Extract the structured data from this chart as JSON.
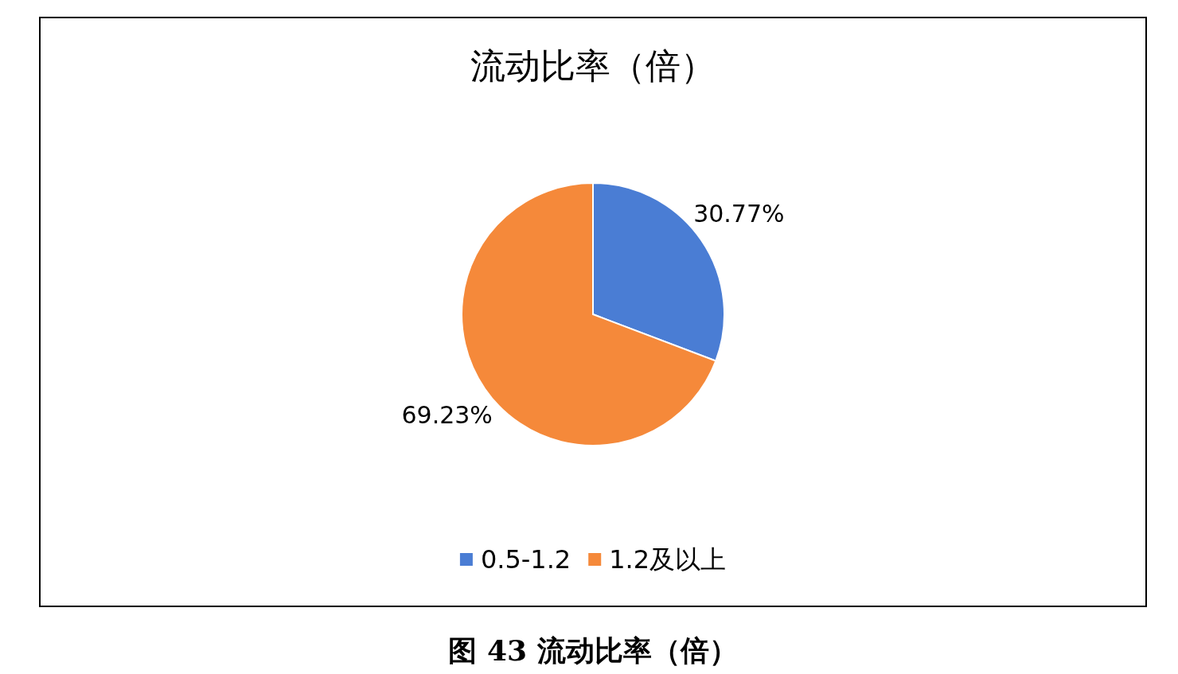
{
  "chart_data": {
    "type": "pie",
    "title": "流动比率（倍）",
    "categories": [
      "0.5-1.2",
      "1.2及以上"
    ],
    "values": [
      30.77,
      69.23
    ],
    "colors": [
      "#4a7dd4",
      "#f5893a"
    ],
    "value_labels": [
      "30.77%",
      "69.23%"
    ],
    "legend": "bottom",
    "annotations": [
      "图 43 流动比率（倍）"
    ]
  }
}
